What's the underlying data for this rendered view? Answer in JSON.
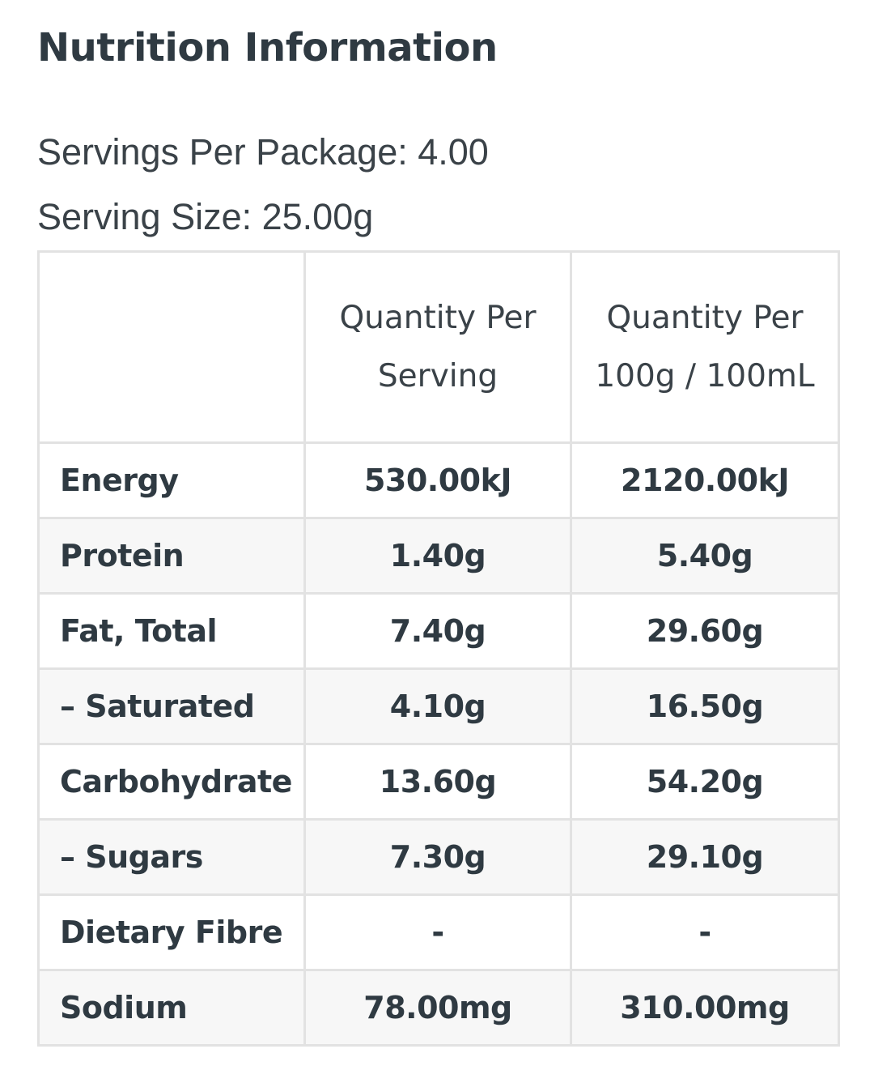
{
  "title": "Nutrition Information",
  "servings_per_package": "Servings Per Package: 4.00",
  "serving_size": "Serving Size: 25.00g",
  "table": {
    "header": {
      "name": "",
      "per_serving": "Quantity Per Serving",
      "per_100": "Quantity Per 100g / 100mL"
    },
    "rows": [
      {
        "name": "Energy",
        "per_serving": "530.00kJ",
        "per_100": "2120.00kJ"
      },
      {
        "name": "Protein",
        "per_serving": "1.40g",
        "per_100": "5.40g"
      },
      {
        "name": "Fat, Total",
        "per_serving": "7.40g",
        "per_100": "29.60g"
      },
      {
        "name": "– Saturated",
        "per_serving": "4.10g",
        "per_100": "16.50g"
      },
      {
        "name": "Carbohydrate",
        "per_serving": "13.60g",
        "per_100": "54.20g"
      },
      {
        "name": "– Sugars",
        "per_serving": "7.30g",
        "per_100": "29.10g"
      },
      {
        "name": "Dietary Fibre",
        "per_serving": "-",
        "per_100": "-"
      },
      {
        "name": "Sodium",
        "per_serving": "78.00mg",
        "per_100": "310.00mg"
      }
    ]
  }
}
